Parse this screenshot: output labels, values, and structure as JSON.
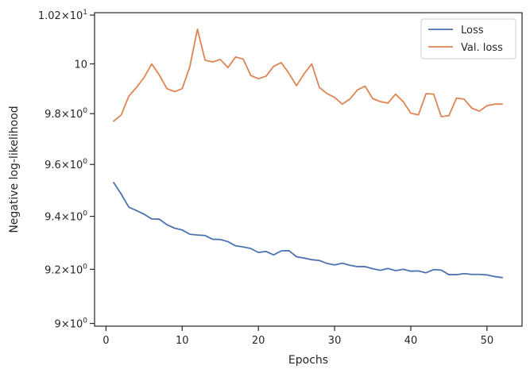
{
  "chart_data": {
    "type": "line",
    "title": "",
    "xlabel": "Epochs",
    "ylabel": "Negative log-likelihood",
    "yscale": "log",
    "xlim": [
      -1.5,
      54.6
    ],
    "ylim": [
      8.99,
      10.21
    ],
    "grid": false,
    "legend_position": "top-right",
    "x_ticks": [
      0,
      10,
      20,
      30,
      40,
      50
    ],
    "x_tick_labels": [
      "0",
      "10",
      "20",
      "30",
      "40",
      "50"
    ],
    "y_ticks": [
      9.0,
      9.2,
      9.4,
      9.6,
      9.8,
      10.0,
      10.2
    ],
    "y_tick_labels": [
      {
        "mantissa": "9",
        "exponent": "0"
      },
      {
        "mantissa": "9.2",
        "exponent": "0"
      },
      {
        "mantissa": "9.4",
        "exponent": "0"
      },
      {
        "mantissa": "9.6",
        "exponent": "0"
      },
      {
        "mantissa": "9.8",
        "exponent": "0"
      },
      {
        "mantissa": "10",
        "exponent": ""
      },
      {
        "mantissa": "1.02",
        "exponent": "1"
      }
    ],
    "x": [
      1,
      2,
      3,
      4,
      5,
      6,
      7,
      8,
      9,
      10,
      11,
      12,
      13,
      14,
      15,
      16,
      17,
      18,
      19,
      20,
      21,
      22,
      23,
      24,
      25,
      26,
      27,
      28,
      29,
      30,
      31,
      32,
      33,
      34,
      35,
      36,
      37,
      38,
      39,
      40,
      41,
      42,
      43,
      44,
      45,
      46,
      47,
      48,
      49,
      50,
      51,
      52
    ],
    "series": [
      {
        "name": "Loss",
        "color": "#4c72b0",
        "values": [
          9.53,
          9.485,
          9.435,
          9.422,
          9.408,
          9.39,
          9.389,
          9.368,
          9.355,
          9.348,
          9.332,
          9.329,
          9.327,
          9.313,
          9.312,
          9.304,
          9.288,
          9.284,
          9.278,
          9.263,
          9.267,
          9.254,
          9.269,
          9.27,
          9.247,
          9.242,
          9.236,
          9.233,
          9.222,
          9.216,
          9.223,
          9.215,
          9.21,
          9.21,
          9.202,
          9.196,
          9.203,
          9.195,
          9.2,
          9.193,
          9.194,
          9.187,
          9.199,
          9.197,
          9.18,
          9.18,
          9.184,
          9.181,
          9.181,
          9.179,
          9.173,
          9.169
        ]
      },
      {
        "name": "Val. loss",
        "color": "#dd8452",
        "values": [
          9.77,
          9.795,
          9.87,
          9.905,
          9.945,
          10.0,
          9.955,
          9.9,
          9.888,
          9.9,
          9.988,
          10.142,
          10.015,
          10.008,
          10.018,
          9.985,
          10.028,
          10.02,
          9.953,
          9.94,
          9.95,
          9.99,
          10.005,
          9.962,
          9.912,
          9.96,
          10.0,
          9.905,
          9.88,
          9.865,
          9.838,
          9.858,
          9.895,
          9.91,
          9.86,
          9.848,
          9.842,
          9.878,
          9.848,
          9.802,
          9.795,
          9.88,
          9.878,
          9.788,
          9.792,
          9.862,
          9.858,
          9.822,
          9.81,
          9.832,
          9.838,
          9.838
        ]
      }
    ]
  }
}
